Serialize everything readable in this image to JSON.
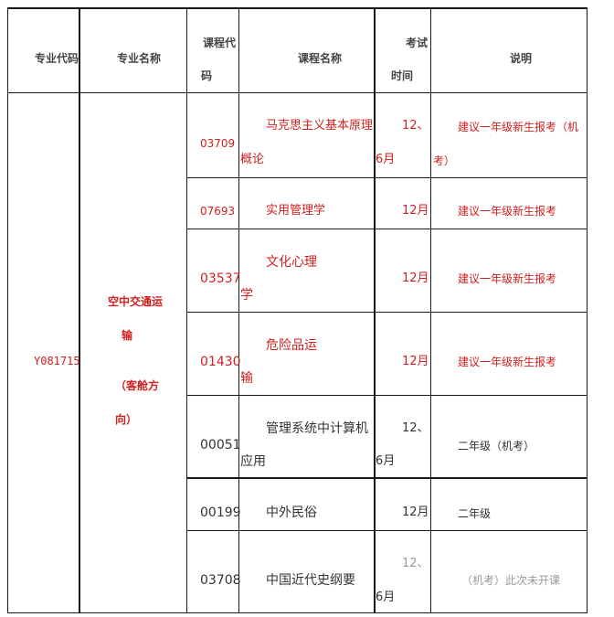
{
  "headers": {
    "major_code": "专业代码",
    "major_name": "专业名称",
    "course_code_line1": "课程代",
    "course_code_line2": "码",
    "course_name": "课程名称",
    "exam_time_line1": "考试",
    "exam_time_line2": "时间",
    "note": "说明"
  },
  "major": {
    "code": "Y081715",
    "name_line1": "空中交通运",
    "name_line2": "输",
    "name_line3": "（客舱方",
    "name_line4": "向）"
  },
  "rows": [
    {
      "code": "03709",
      "name_line1": "马克思主义基本原理",
      "name_line2": "概论",
      "time_line1": "12、",
      "time_line2": "6月",
      "note_line1": "建议一年级新生报考（机",
      "note_line2": "考）"
    },
    {
      "code": "07693",
      "name_line1": "实用管理学",
      "time_line1": "12月",
      "note_line1": "建议一年级新生报考"
    },
    {
      "code": "03537",
      "name_line1": "文化心理",
      "name_line2": "学",
      "time_line1": "12月",
      "note_line1": "建议一年级新生报考"
    },
    {
      "code": "01430",
      "name_line1": "危险品运",
      "name_line2": "输",
      "time_line1": "12月",
      "note_line1": "建议一年级新生报考"
    },
    {
      "code": "00051",
      "name_line1": "管理系统中计算机",
      "name_line2": "应用",
      "time_line1": "12、",
      "time_line2": "6月",
      "note_line1": "二年级（机考）"
    },
    {
      "code": "00199",
      "name_line1": "中外民俗",
      "time_line1": "12月",
      "note_line1": "二年级"
    },
    {
      "code": "03708",
      "name_line1": "中国近代史纲要",
      "time_line1": "12、",
      "time_line2": "6月",
      "note_line1": "（机考）此次未开课"
    }
  ]
}
